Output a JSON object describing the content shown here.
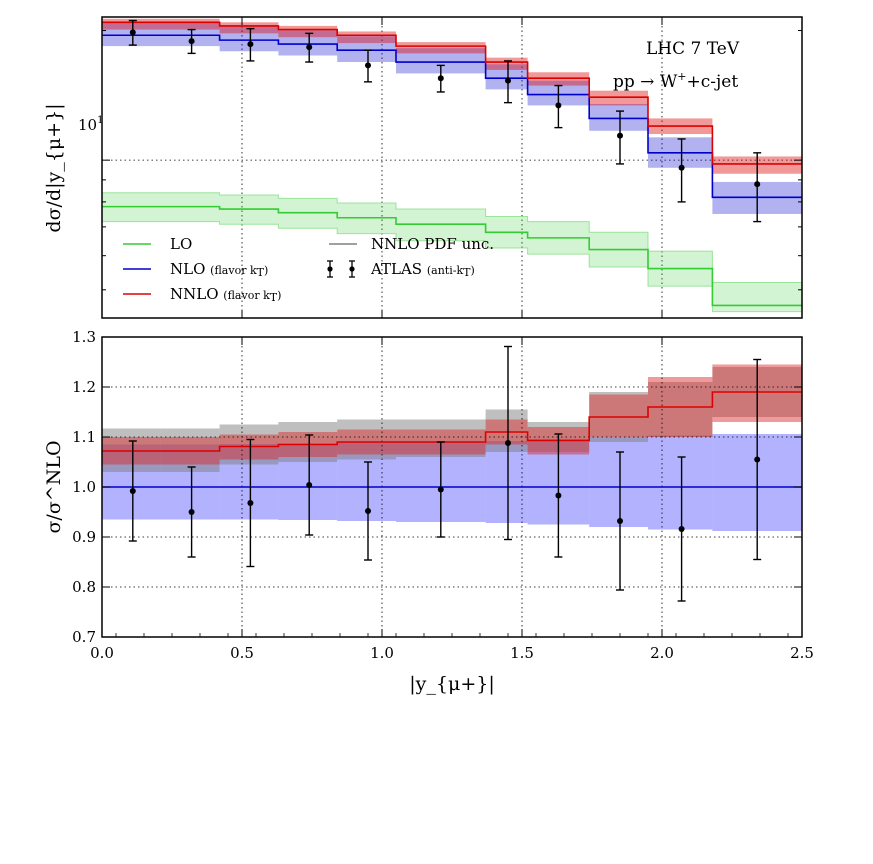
{
  "chart_data": [
    {
      "type": "line",
      "panel": "top",
      "yscale": "log",
      "bin_edges": [
        0.0,
        0.42,
        0.63,
        0.84,
        1.05,
        1.37,
        1.52,
        1.74,
        1.95,
        2.18,
        2.5
      ],
      "xlim": [
        0.0,
        2.5
      ],
      "ylim": [
        4.3,
        21.5
      ],
      "ylabel": "dσ/d|y_{μ+}|",
      "ytick_label": "10",
      "ytick_sup": "1",
      "annotations": {
        "line1": "LHC 7 TeV",
        "line2_pre": "pp → W",
        "line2_sup": "+",
        "line2_post": "+c-jet"
      },
      "legend": {
        "lo": "LO",
        "nlo": "NLO",
        "nlo_note": "(flavor k",
        "nlo_sub": "T",
        "nnlo": "NNLO",
        "nnlo_note": "(flavor k",
        "nnlo_sub": "T",
        "pdf": "NNLO PDF unc.",
        "atlas": "ATLAS",
        "atlas_note": "(anti-k",
        "atlas_sub": "T"
      },
      "series": [
        {
          "name": "LO",
          "color": "#33cc33",
          "values": [
            7.8,
            7.7,
            7.55,
            7.35,
            7.1,
            6.8,
            6.6,
            6.2,
            5.6,
            4.6
          ],
          "lower": [
            7.2,
            7.1,
            6.95,
            6.75,
            6.5,
            6.25,
            6.05,
            5.65,
            5.1,
            4.45
          ],
          "upper": [
            8.4,
            8.3,
            8.15,
            7.95,
            7.7,
            7.4,
            7.2,
            6.8,
            6.15,
            5.2
          ]
        },
        {
          "name": "NLO",
          "color": "#0000cc",
          "values": [
            19.5,
            19.0,
            18.6,
            18.0,
            16.9,
            15.5,
            14.2,
            12.5,
            10.4,
            8.2
          ],
          "lower": [
            18.4,
            17.9,
            17.5,
            16.9,
            15.9,
            14.6,
            13.4,
            11.7,
            9.6,
            7.5
          ],
          "upper": [
            21.0,
            20.5,
            20.0,
            19.4,
            18.2,
            16.7,
            15.3,
            13.5,
            11.3,
            8.9
          ]
        },
        {
          "name": "NNLO",
          "color": "#dd0000",
          "values": [
            20.9,
            20.5,
            20.1,
            19.5,
            18.4,
            16.9,
            15.5,
            14.0,
            12.0,
            9.8
          ],
          "lower": [
            20.1,
            19.7,
            19.3,
            18.7,
            17.7,
            16.2,
            14.9,
            13.4,
            11.5,
            9.3
          ],
          "upper": [
            21.3,
            20.9,
            20.5,
            19.9,
            18.8,
            17.3,
            16.0,
            14.5,
            12.5,
            10.2
          ]
        }
      ],
      "data_points": {
        "name": "ATLAS (anti-kT)",
        "x": [
          0.11,
          0.32,
          0.53,
          0.74,
          0.95,
          1.21,
          1.45,
          1.63,
          1.85,
          2.07,
          2.34
        ],
        "y": [
          19.8,
          18.9,
          18.6,
          18.3,
          16.6,
          15.5,
          15.3,
          13.4,
          11.4,
          9.6,
          8.8
        ],
        "err": [
          1.3,
          1.2,
          1.6,
          1.4,
          1.4,
          1.1,
          1.7,
          1.5,
          1.6,
          1.6,
          1.6
        ]
      }
    },
    {
      "type": "line",
      "panel": "bottom",
      "xlim": [
        0.0,
        2.5
      ],
      "ylim": [
        0.7,
        1.3
      ],
      "xlabel": "|y_{μ+}|",
      "ylabel": "σ/σ^NLO",
      "xticks": [
        "0.0",
        "0.5",
        "1.0",
        "1.5",
        "2.0",
        "2.5"
      ],
      "yticks": [
        "0.7",
        "0.8",
        "0.9",
        "1.0",
        "1.1",
        "1.2",
        "1.3"
      ],
      "series": [
        {
          "name": "NLO",
          "color": "#0000cc",
          "values": [
            1.0,
            1.0,
            1.0,
            1.0,
            1.0,
            1.0,
            1.0,
            1.0,
            1.0,
            1.0
          ],
          "lower": [
            0.935,
            0.935,
            0.934,
            0.932,
            0.93,
            0.928,
            0.925,
            0.92,
            0.915,
            0.912
          ],
          "upper": [
            1.085,
            1.086,
            1.087,
            1.089,
            1.09,
            1.092,
            1.096,
            1.1,
            1.103,
            1.106
          ]
        },
        {
          "name": "NNLO",
          "color": "#dd0000",
          "values": [
            1.072,
            1.072,
            1.081,
            1.085,
            1.09,
            1.09,
            1.11,
            1.093,
            1.14,
            1.16,
            1.19
          ],
          "lower": [
            1.045,
            1.045,
            1.055,
            1.06,
            1.065,
            1.065,
            1.085,
            1.065,
            1.1,
            1.1,
            1.13
          ],
          "upper": [
            1.1,
            1.1,
            1.105,
            1.11,
            1.115,
            1.115,
            1.135,
            1.12,
            1.185,
            1.22,
            1.245
          ]
        },
        {
          "name": "NNLO PDF unc.",
          "color": "#808080",
          "lower": [
            1.03,
            1.03,
            1.045,
            1.05,
            1.055,
            1.06,
            1.07,
            1.07,
            1.09,
            1.1,
            1.14
          ],
          "upper": [
            1.117,
            1.117,
            1.125,
            1.13,
            1.135,
            1.135,
            1.155,
            1.13,
            1.19,
            1.21,
            1.24
          ]
        }
      ],
      "data_points": {
        "name": "ATLAS (anti-kT)",
        "x": [
          0.11,
          0.32,
          0.53,
          0.74,
          0.95,
          1.21,
          1.45,
          1.63,
          1.85,
          2.07,
          2.34
        ],
        "y": [
          0.992,
          0.95,
          0.968,
          1.004,
          0.952,
          0.995,
          1.088,
          0.983,
          0.932,
          0.916,
          1.055
        ],
        "err": [
          0.1,
          0.09,
          0.127,
          0.1,
          0.098,
          0.095,
          0.193,
          0.123,
          0.138,
          0.144,
          0.2
        ]
      }
    }
  ]
}
